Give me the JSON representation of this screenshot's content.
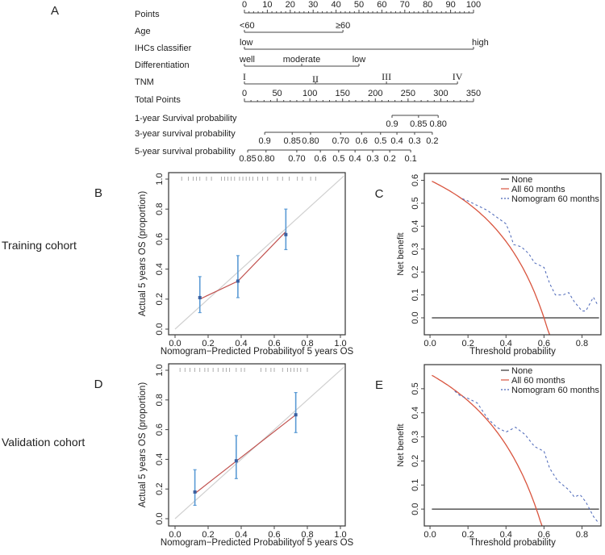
{
  "figure": {
    "training_label": "Training cohort",
    "validation_label": "Validation cohort"
  },
  "chart_data": [
    {
      "type": "nomogram",
      "panel": "A",
      "points_axis": {
        "label": "Points",
        "min": 0,
        "max": 100,
        "major_step": 10,
        "minor_step": 2
      },
      "variables": [
        {
          "label": "Age",
          "levels": [
            {
              "text": "<60",
              "points": 0
            },
            {
              "text": "≥60",
              "points": 43
            }
          ]
        },
        {
          "label": "IHCs classifier",
          "levels": [
            {
              "text": "low",
              "points": 0
            },
            {
              "text": "high",
              "points": 100
            }
          ]
        },
        {
          "label": "Differentiation",
          "levels": [
            {
              "text": "well",
              "points": 0
            },
            {
              "text": "moderate",
              "points": 25
            },
            {
              "text": "low",
              "points": 50
            }
          ]
        },
        {
          "label": "TNM",
          "levels": [
            {
              "text": "I",
              "points": 0
            },
            {
              "text": "II",
              "points": 31
            },
            {
              "text": "III",
              "points": 62
            },
            {
              "text": "IV",
              "points": 93
            }
          ]
        }
      ],
      "total_points_axis": {
        "label": "Total Points",
        "min": 0,
        "max": 350,
        "major_step": 50,
        "minor_step": 10
      },
      "survival_scales": [
        {
          "label": "1-year Survival probability",
          "ticks": [
            {
              "text": "0.9",
              "total_points": 225.5
            },
            {
              "text": "0.85",
              "total_points": 266
            },
            {
              "text": "0.80",
              "total_points": 296
            }
          ]
        },
        {
          "label": "3-year survival probability",
          "ticks": [
            {
              "text": "0.9",
              "total_points": 31
            },
            {
              "text": "0.85",
              "total_points": 73
            },
            {
              "text": "0.80",
              "total_points": 101
            },
            {
              "text": "0.70",
              "total_points": 147
            },
            {
              "text": "0.6",
              "total_points": 179
            },
            {
              "text": "0.5",
              "total_points": 208
            },
            {
              "text": "0.4",
              "total_points": 233
            },
            {
              "text": "0.3",
              "total_points": 260
            },
            {
              "text": "0.2",
              "total_points": 287
            }
          ]
        },
        {
          "label": "5-year survival probability",
          "ticks": [
            {
              "text": "0.85",
              "total_points": 5
            },
            {
              "text": "0.80",
              "total_points": 33
            },
            {
              "text": "0.70",
              "total_points": 80
            },
            {
              "text": "0.6",
              "total_points": 116
            },
            {
              "text": "0.5",
              "total_points": 144
            },
            {
              "text": "0.4",
              "total_points": 169
            },
            {
              "text": "0.3",
              "total_points": 196
            },
            {
              "text": "0.2",
              "total_points": 222
            },
            {
              "text": "0.1",
              "total_points": 254
            }
          ]
        }
      ]
    },
    {
      "type": "scatter",
      "panel": "B",
      "xlabel": "Nomogram−Predicted Probabilityof 5 years OS",
      "ylabel": "Actual 5 years OS (proportion)",
      "xlim": [
        0,
        1
      ],
      "ylim": [
        0,
        1
      ],
      "xticks": [
        "0.0",
        "0.2",
        "0.4",
        "0.6",
        "0.8",
        "1.0"
      ],
      "yticks": [
        "0.0",
        "0.2",
        "0.4",
        "0.6",
        "0.8",
        "1.0"
      ],
      "points": [
        {
          "x": 0.15,
          "y": 0.21,
          "lo": 0.11,
          "hi": 0.35
        },
        {
          "x": 0.38,
          "y": 0.32,
          "lo": 0.21,
          "hi": 0.49
        },
        {
          "x": 0.67,
          "y": 0.63,
          "lo": 0.53,
          "hi": 0.8
        }
      ],
      "fit_line": [
        [
          0.15,
          0.2
        ],
        [
          0.38,
          0.32
        ],
        [
          0.67,
          0.65
        ]
      ],
      "rug": [
        0.04,
        0.08,
        0.11,
        0.13,
        0.15,
        0.19,
        0.22,
        0.28,
        0.3,
        0.32,
        0.34,
        0.36,
        0.39,
        0.41,
        0.43,
        0.45,
        0.47,
        0.5,
        0.53,
        0.56,
        0.62,
        0.65,
        0.69,
        0.74,
        0.77,
        0.82,
        0.85
      ],
      "colors": {
        "fit": "#c0504d",
        "points": "#3a5fa0",
        "error_bars": "#5b9bd5",
        "ideal": "#d0d0d0"
      }
    },
    {
      "type": "line",
      "panel": "C",
      "xlabel": "Threshold probability",
      "ylabel": "Net benefit",
      "xlim": [
        -0.03,
        0.9
      ],
      "ylim": [
        -0.074,
        0.63
      ],
      "xticks": [
        "0.0",
        "0.2",
        "0.4",
        "0.6",
        "0.8"
      ],
      "yticks": [
        "0.0",
        "0.1",
        "0.2",
        "0.3",
        "0.4",
        "0.5",
        "0.6"
      ],
      "legend": "top-right",
      "prevalence": 0.6,
      "series": [
        {
          "name": "None",
          "color": "#333333",
          "style": "solid",
          "points": [
            [
              0.01,
              0
            ],
            [
              0.89,
              0
            ]
          ]
        },
        {
          "name": "All 60 months",
          "color": "#d9553f",
          "style": "solid",
          "formula": "treat-all"
        },
        {
          "name": "Nomogram 60 months",
          "color": "#4a66b8",
          "style": "dashed",
          "points": [
            [
              0.17,
              0.52
            ],
            [
              0.2,
              0.51
            ],
            [
              0.25,
              0.49
            ],
            [
              0.3,
              0.47
            ],
            [
              0.35,
              0.44
            ],
            [
              0.4,
              0.41
            ],
            [
              0.42,
              0.37
            ],
            [
              0.44,
              0.32
            ],
            [
              0.48,
              0.31
            ],
            [
              0.52,
              0.28
            ],
            [
              0.55,
              0.24
            ],
            [
              0.6,
              0.22
            ],
            [
              0.63,
              0.15
            ],
            [
              0.66,
              0.1
            ],
            [
              0.7,
              0.1
            ],
            [
              0.73,
              0.11
            ],
            [
              0.76,
              0.07
            ],
            [
              0.8,
              0.03
            ],
            [
              0.82,
              0.03
            ],
            [
              0.86,
              0.09
            ],
            [
              0.88,
              0.06
            ]
          ]
        }
      ]
    },
    {
      "type": "scatter",
      "panel": "D",
      "xlabel": "Nomogram−Predicted Probabilityof 5 years OS",
      "ylabel": "Actual 5 years OS (proportion)",
      "xlim": [
        0,
        1
      ],
      "ylim": [
        0,
        1
      ],
      "xticks": [
        "0.0",
        "0.2",
        "0.4",
        "0.6",
        "0.8",
        "1.0"
      ],
      "yticks": [
        "0.0",
        "0.2",
        "0.4",
        "0.6",
        "0.8",
        "1.0"
      ],
      "points": [
        {
          "x": 0.12,
          "y": 0.18,
          "lo": 0.09,
          "hi": 0.33
        },
        {
          "x": 0.37,
          "y": 0.39,
          "lo": 0.27,
          "hi": 0.56
        },
        {
          "x": 0.73,
          "y": 0.7,
          "lo": 0.58,
          "hi": 0.85
        }
      ],
      "fit_line": [
        [
          0.12,
          0.17
        ],
        [
          0.73,
          0.7
        ]
      ],
      "rug": [
        0.03,
        0.06,
        0.09,
        0.12,
        0.15,
        0.18,
        0.2,
        0.23,
        0.26,
        0.29,
        0.31,
        0.33,
        0.37,
        0.4,
        0.42,
        0.52,
        0.55,
        0.58,
        0.6,
        0.65,
        0.68,
        0.7,
        0.72,
        0.74,
        0.76,
        0.8
      ],
      "colors": {
        "fit": "#c0504d",
        "points": "#3a5fa0",
        "error_bars": "#5b9bd5",
        "ideal": "#d0d0d0"
      }
    },
    {
      "type": "line",
      "panel": "E",
      "xlabel": "Threshold probability",
      "ylabel": "Net benefit",
      "xlim": [
        -0.03,
        0.9
      ],
      "ylim": [
        -0.07,
        0.6
      ],
      "xticks": [
        "0.0",
        "0.2",
        "0.4",
        "0.6",
        "0.8"
      ],
      "yticks": [
        "0.0",
        "0.1",
        "0.2",
        "0.3",
        "0.4",
        "0.5"
      ],
      "legend": "top-right",
      "prevalence": 0.56,
      "series": [
        {
          "name": "None",
          "color": "#333333",
          "style": "solid",
          "points": [
            [
              0.01,
              0
            ],
            [
              0.89,
              0
            ]
          ]
        },
        {
          "name": "All 60 months",
          "color": "#d9553f",
          "style": "solid",
          "formula": "treat-all"
        },
        {
          "name": "Nomogram 60 months",
          "color": "#4a66b8",
          "style": "dashed",
          "points": [
            [
              0.13,
              0.49
            ],
            [
              0.16,
              0.47
            ],
            [
              0.2,
              0.46
            ],
            [
              0.25,
              0.44
            ],
            [
              0.3,
              0.38
            ],
            [
              0.35,
              0.34
            ],
            [
              0.4,
              0.32
            ],
            [
              0.45,
              0.34
            ],
            [
              0.5,
              0.31
            ],
            [
              0.55,
              0.26
            ],
            [
              0.6,
              0.24
            ],
            [
              0.63,
              0.17
            ],
            [
              0.67,
              0.12
            ],
            [
              0.7,
              0.1
            ],
            [
              0.73,
              0.08
            ],
            [
              0.76,
              0.05
            ],
            [
              0.79,
              0.06
            ],
            [
              0.82,
              0.03
            ],
            [
              0.84,
              0.0
            ],
            [
              0.86,
              -0.03
            ],
            [
              0.89,
              -0.06
            ]
          ]
        }
      ]
    }
  ]
}
